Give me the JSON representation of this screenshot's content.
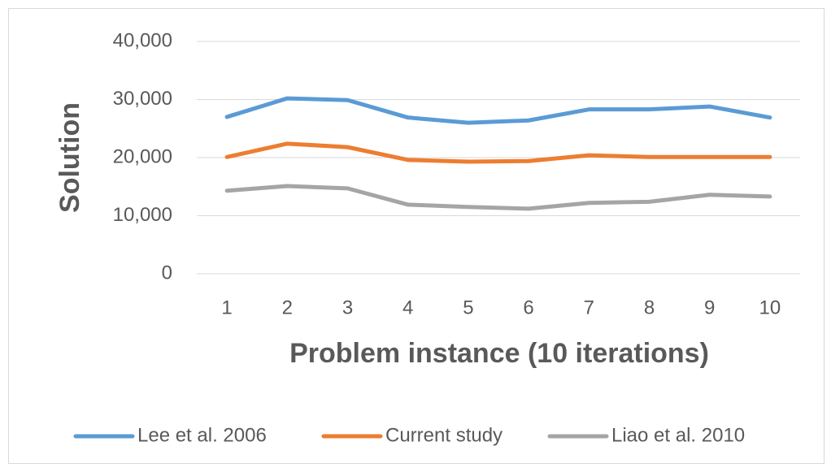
{
  "chart_data": {
    "type": "line",
    "x_label": "Problem instance (10 iterations)",
    "y_label": "Solution",
    "categories": [
      "1",
      "2",
      "3",
      "4",
      "5",
      "6",
      "7",
      "8",
      "9",
      "10"
    ],
    "series": [
      {
        "name": "Lee et al. 2006",
        "color": "#5b9bd5",
        "values": [
          27000,
          30200,
          29900,
          26900,
          26000,
          26400,
          28300,
          28300,
          28800,
          26900
        ]
      },
      {
        "name": "Current study",
        "color": "#ed7d31",
        "values": [
          20100,
          22400,
          21800,
          19600,
          19300,
          19400,
          20400,
          20100,
          20100,
          20100
        ]
      },
      {
        "name": "Liao et al. 2010",
        "color": "#a5a5a5",
        "values": [
          14300,
          15100,
          14700,
          11900,
          11500,
          11200,
          12200,
          12400,
          13600,
          13300
        ]
      }
    ],
    "ylim": [
      0,
      40000
    ],
    "yticks": [
      0,
      {
        "value": 10000,
        "label": "10,000"
      },
      {
        "value": 20000,
        "label": "20,000"
      },
      {
        "value": 30000,
        "label": "30,000"
      },
      {
        "value": 40000,
        "label": "40,000"
      }
    ],
    "grid": true,
    "legend": "bottom"
  }
}
